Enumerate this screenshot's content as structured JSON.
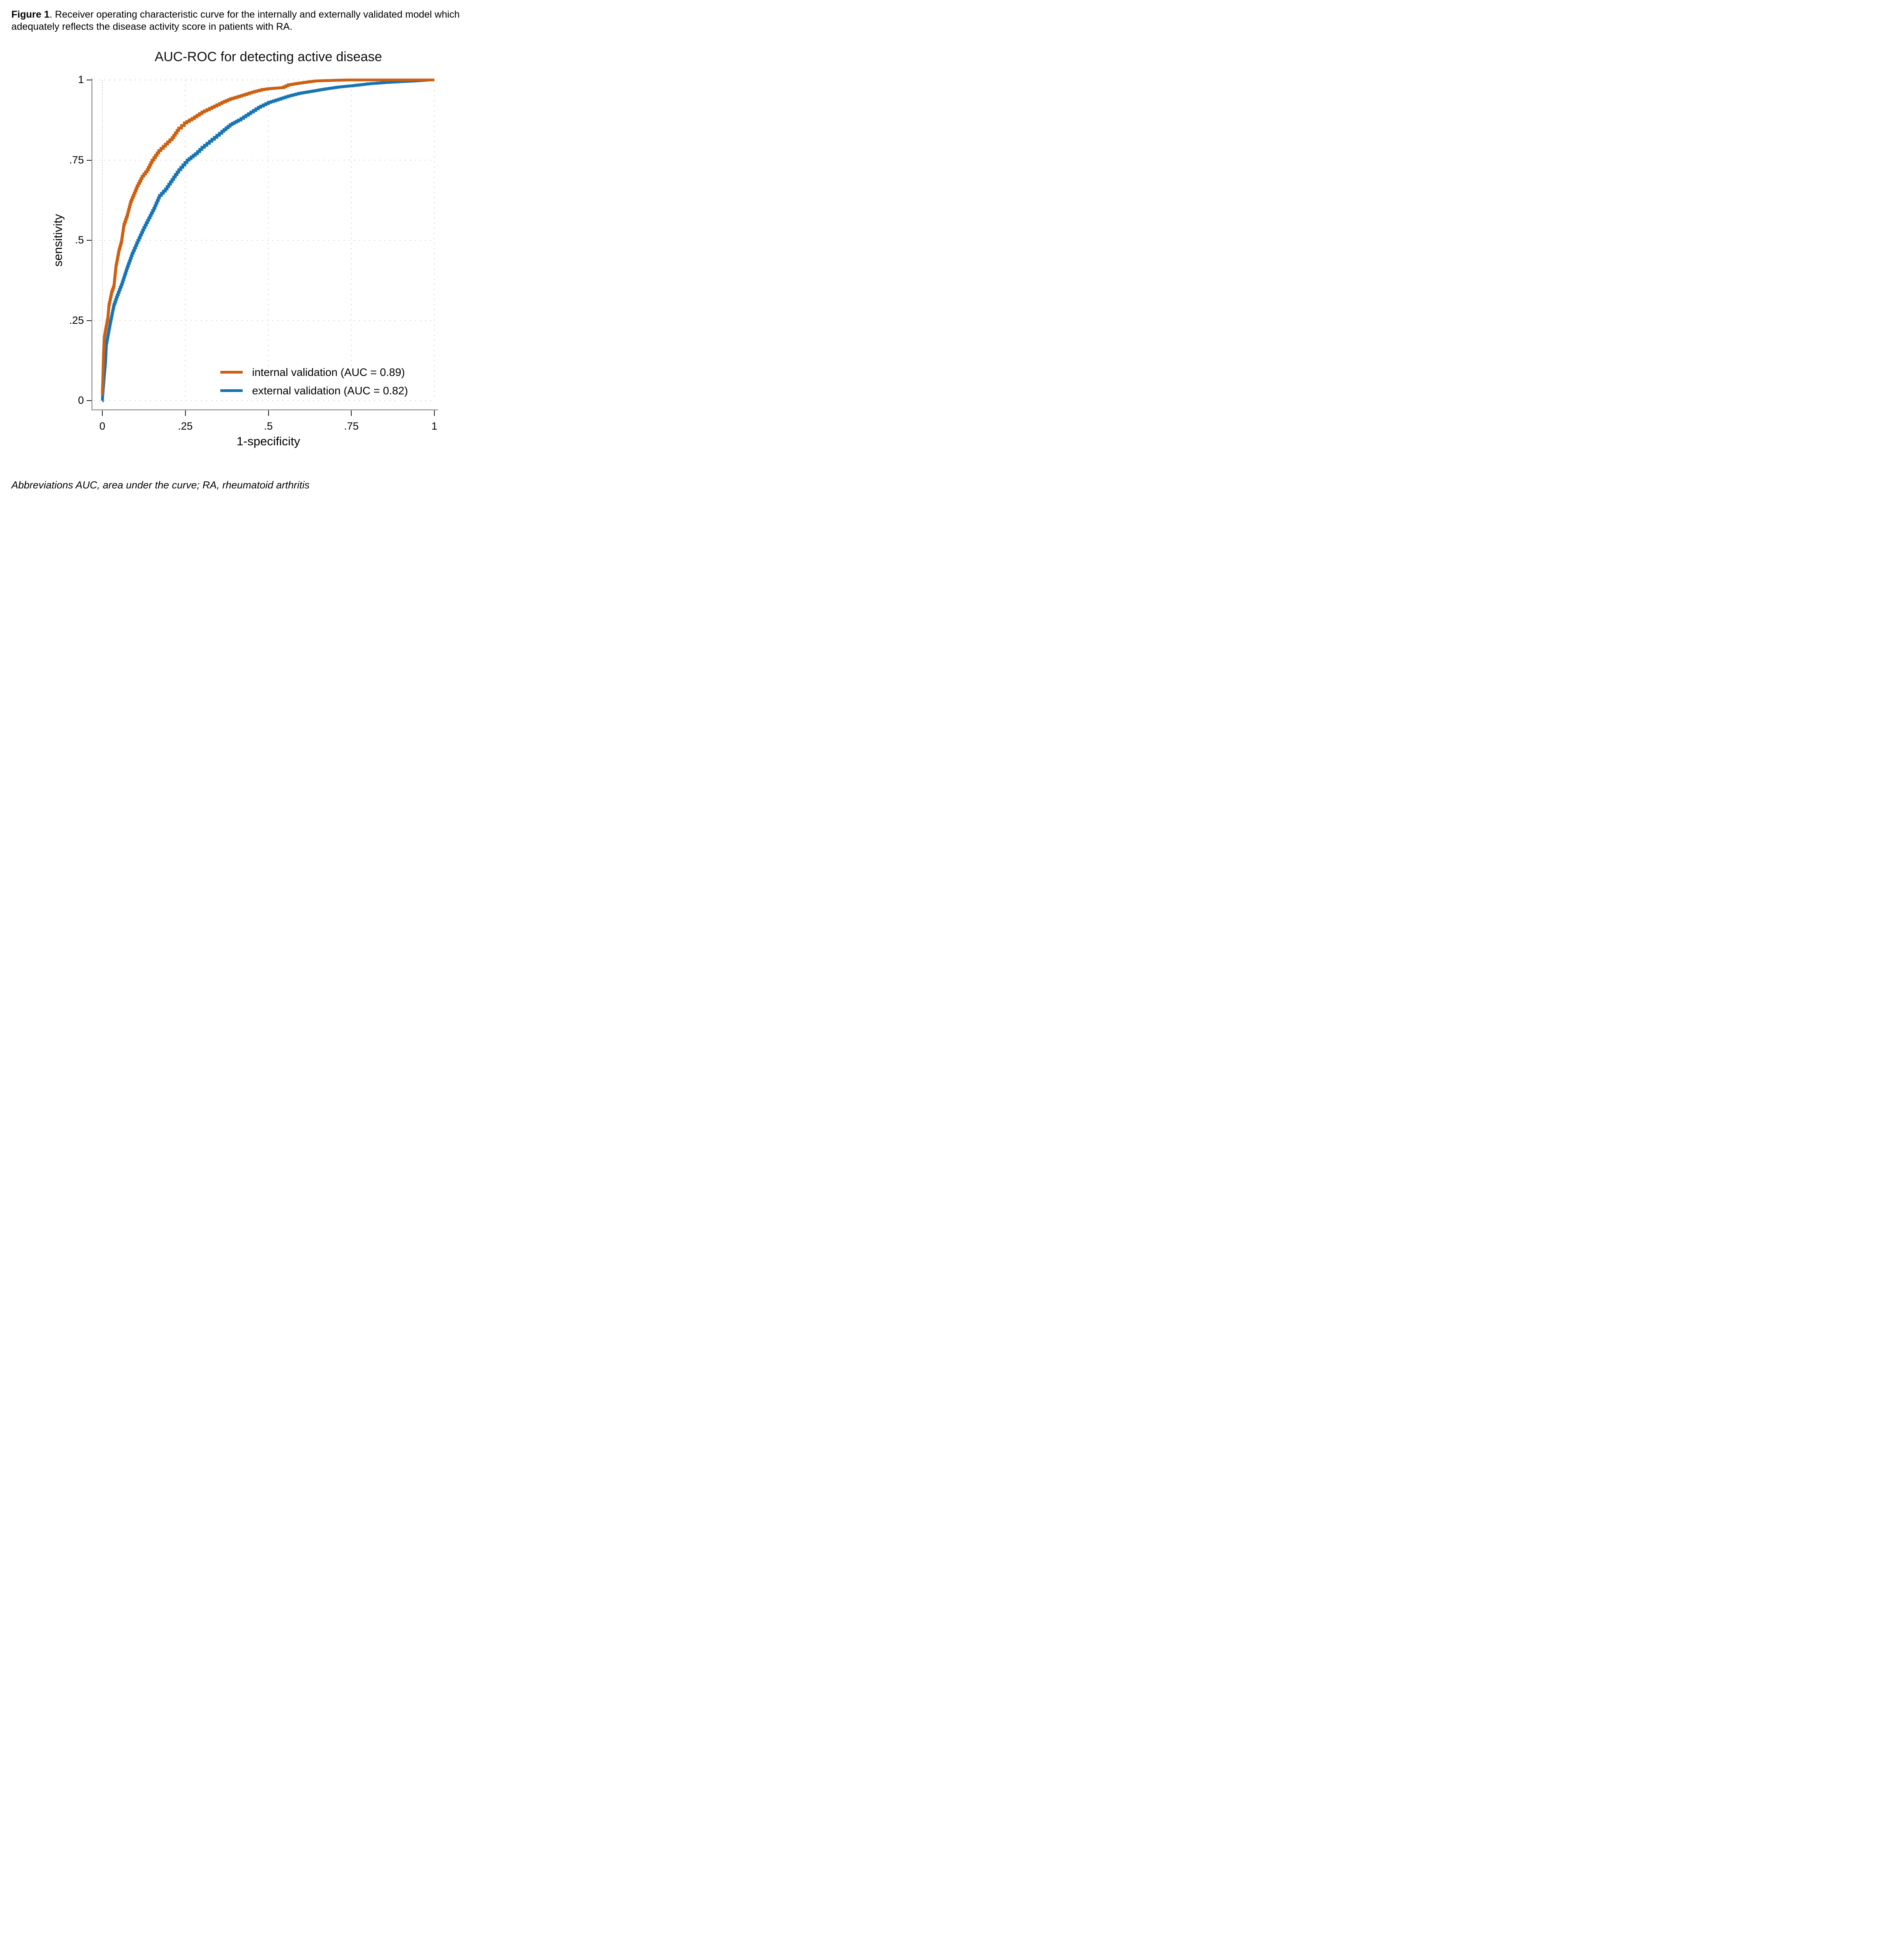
{
  "figure_caption": {
    "bold": "Figure 1",
    "rest": ". Receiver operating characteristic curve for the internally and externally validated model which adequately reflects the disease activity score in patients with RA."
  },
  "footnote": "Abbreviations AUC, area under the curve; RA, rheumatoid arthritis",
  "colors": {
    "internal": "#CD5F10",
    "external": "#1774B4",
    "grid": "#c6c6c6",
    "zero_grid": "#bdbdbd",
    "axis_bar": "#a6a6a6",
    "tick": "#1a1a1a",
    "text": "#000000"
  },
  "chart_data": {
    "type": "line",
    "subtype": "roc-step-curves",
    "title": "AUC-ROC for detecting active disease",
    "xlabel": "1-specificity",
    "ylabel": "sensitivity",
    "xlim": [
      0,
      1
    ],
    "ylim": [
      0,
      1
    ],
    "grid": "dotted gridlines at all ticks, both axes",
    "legend_position": "inside lower right",
    "xticks": {
      "values": [
        0,
        0.25,
        0.5,
        0.75,
        1
      ],
      "labels": [
        "0",
        ".25",
        ".5",
        ".75",
        "1"
      ]
    },
    "yticks": {
      "values": [
        0,
        0.25,
        0.5,
        0.75,
        1
      ],
      "labels": [
        "0",
        ".25",
        ".5",
        ".75",
        "1"
      ]
    },
    "series": [
      {
        "name": "internal validation (AUC = 0.89)",
        "auc": 0.89,
        "color_key": "internal",
        "points": [
          [
            0.0,
            0.02
          ],
          [
            0.001,
            0.05
          ],
          [
            0.003,
            0.13
          ],
          [
            0.006,
            0.2
          ],
          [
            0.012,
            0.235
          ],
          [
            0.0165,
            0.26
          ],
          [
            0.02,
            0.3
          ],
          [
            0.028,
            0.34
          ],
          [
            0.035,
            0.36
          ],
          [
            0.041,
            0.42
          ],
          [
            0.05,
            0.47
          ],
          [
            0.058,
            0.5
          ],
          [
            0.065,
            0.55
          ],
          [
            0.075,
            0.58
          ],
          [
            0.085,
            0.62
          ],
          [
            0.093,
            0.64
          ],
          [
            0.105,
            0.67
          ],
          [
            0.12,
            0.7
          ],
          [
            0.135,
            0.72
          ],
          [
            0.15,
            0.75
          ],
          [
            0.17,
            0.78
          ],
          [
            0.19,
            0.8
          ],
          [
            0.21,
            0.82
          ],
          [
            0.23,
            0.85
          ],
          [
            0.247,
            0.866
          ],
          [
            0.27,
            0.88
          ],
          [
            0.3,
            0.9
          ],
          [
            0.33,
            0.915
          ],
          [
            0.36,
            0.93
          ],
          [
            0.385,
            0.941
          ],
          [
            0.42,
            0.952
          ],
          [
            0.45,
            0.962
          ],
          [
            0.48,
            0.97
          ],
          [
            0.5,
            0.973
          ],
          [
            0.54,
            0.976
          ],
          [
            0.56,
            0.985
          ],
          [
            0.59,
            0.99
          ],
          [
            0.64,
            0.997
          ],
          [
            0.7,
            0.999
          ],
          [
            0.74,
            1.0
          ],
          [
            1.0,
            1.0
          ]
        ]
      },
      {
        "name": "external validation (AUC = 0.82)",
        "auc": 0.82,
        "color_key": "external",
        "points": [
          [
            0.0,
            0.0
          ],
          [
            0.001,
            0.02
          ],
          [
            0.01,
            0.13
          ],
          [
            0.0125,
            0.18
          ],
          [
            0.025,
            0.25
          ],
          [
            0.035,
            0.3
          ],
          [
            0.045,
            0.33
          ],
          [
            0.06,
            0.37
          ],
          [
            0.076,
            0.42
          ],
          [
            0.09,
            0.46
          ],
          [
            0.107,
            0.5
          ],
          [
            0.125,
            0.54
          ],
          [
            0.14,
            0.57
          ],
          [
            0.155,
            0.6
          ],
          [
            0.172,
            0.64
          ],
          [
            0.19,
            0.66
          ],
          [
            0.21,
            0.69
          ],
          [
            0.23,
            0.72
          ],
          [
            0.255,
            0.75
          ],
          [
            0.28,
            0.77
          ],
          [
            0.3,
            0.79
          ],
          [
            0.33,
            0.815
          ],
          [
            0.36,
            0.84
          ],
          [
            0.385,
            0.861
          ],
          [
            0.41,
            0.875
          ],
          [
            0.44,
            0.895
          ],
          [
            0.47,
            0.915
          ],
          [
            0.5,
            0.93
          ],
          [
            0.53,
            0.94
          ],
          [
            0.56,
            0.95
          ],
          [
            0.59,
            0.958
          ],
          [
            0.63,
            0.965
          ],
          [
            0.67,
            0.972
          ],
          [
            0.71,
            0.978
          ],
          [
            0.75,
            0.982
          ],
          [
            0.8,
            0.988
          ],
          [
            0.85,
            0.992
          ],
          [
            0.9,
            0.995
          ],
          [
            0.94,
            0.997
          ],
          [
            0.98,
            1.0
          ],
          [
            1.0,
            1.0
          ]
        ]
      }
    ]
  }
}
